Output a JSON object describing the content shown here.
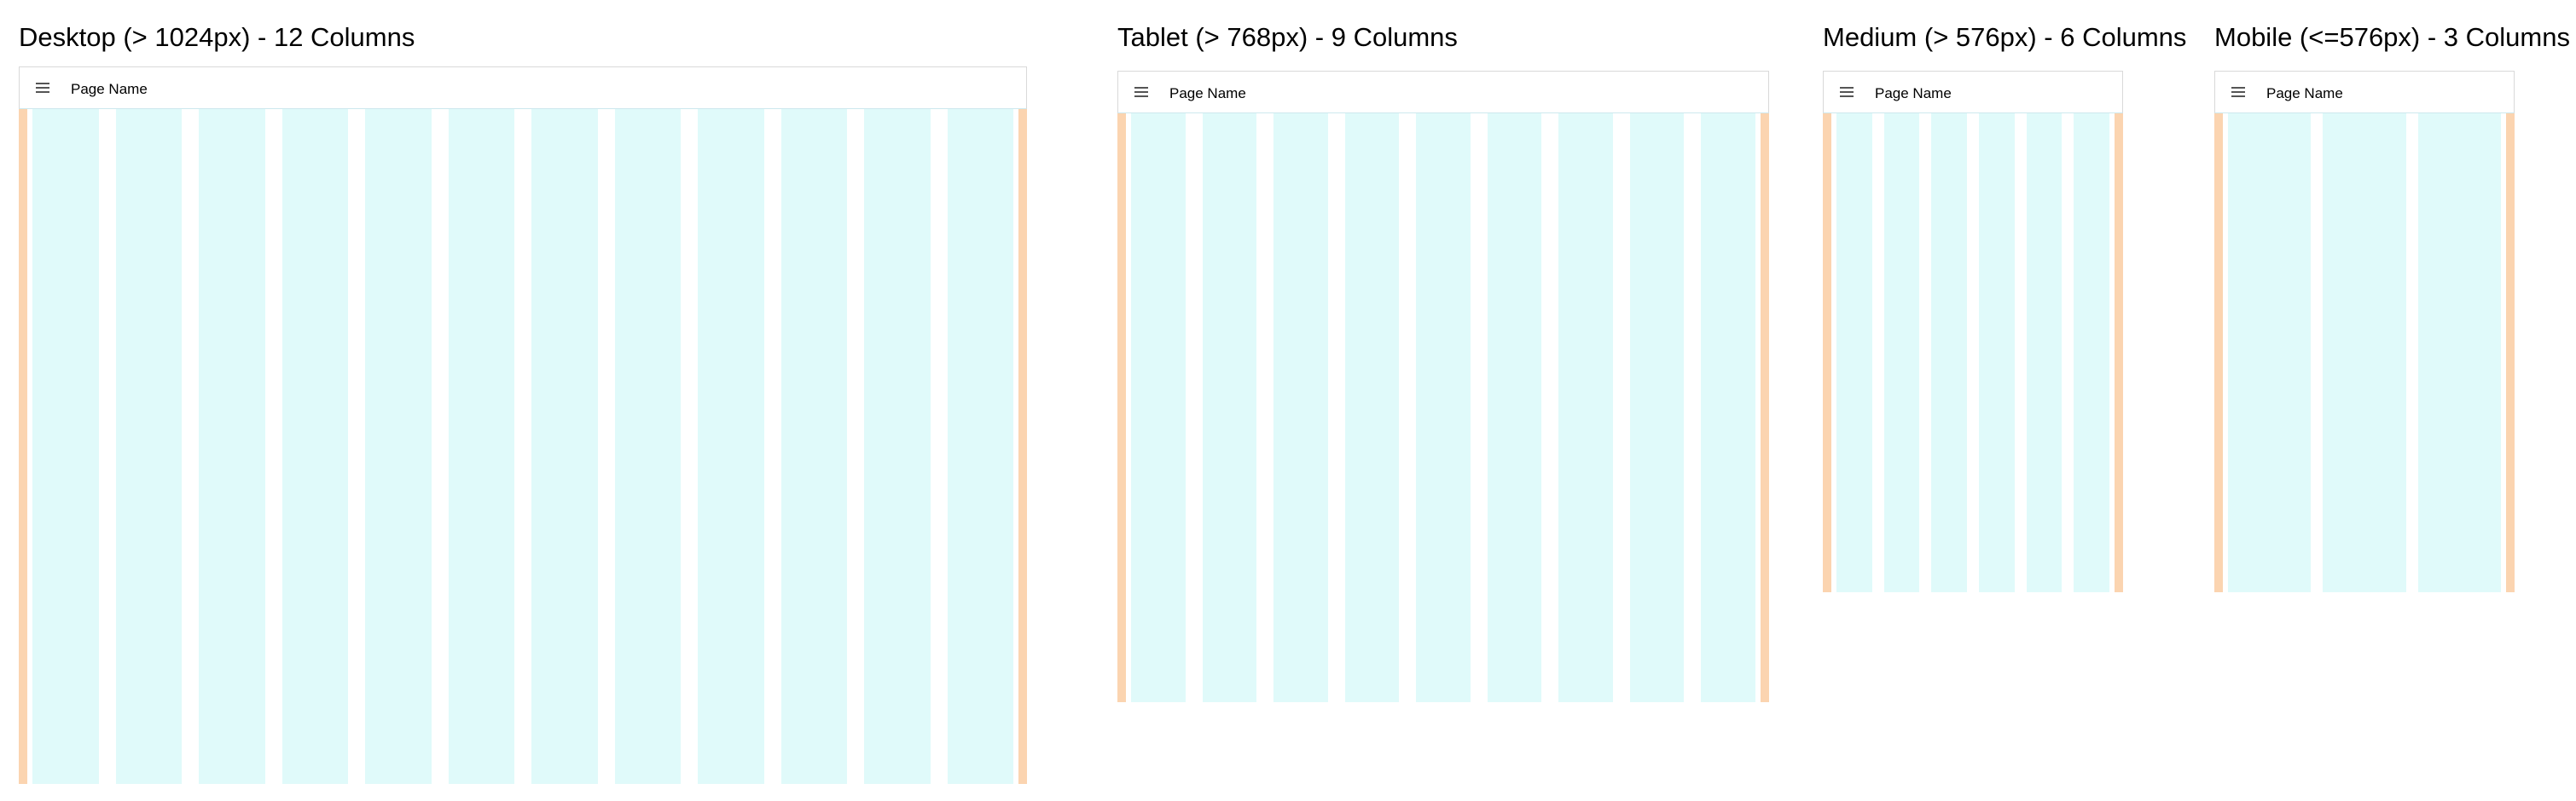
{
  "colors": {
    "column": "#e0fafa",
    "margin": "#fbd4b0"
  },
  "icons": {
    "menu": "hamburger-menu-icon"
  },
  "panels": [
    {
      "id": "desktop",
      "title": "Desktop (> 1024px) - 12 Columns",
      "page_name": "Page Name",
      "columns": 12
    },
    {
      "id": "tablet",
      "title": "Tablet (> 768px) - 9 Columns",
      "page_name": "Page Name",
      "columns": 9
    },
    {
      "id": "medium",
      "title": "Medium (> 576px) - 6 Columns",
      "page_name": "Page Name",
      "columns": 6
    },
    {
      "id": "mobile",
      "title": "Mobile (<=576px) - 3 Columns",
      "page_name": "Page Name",
      "columns": 3
    }
  ]
}
